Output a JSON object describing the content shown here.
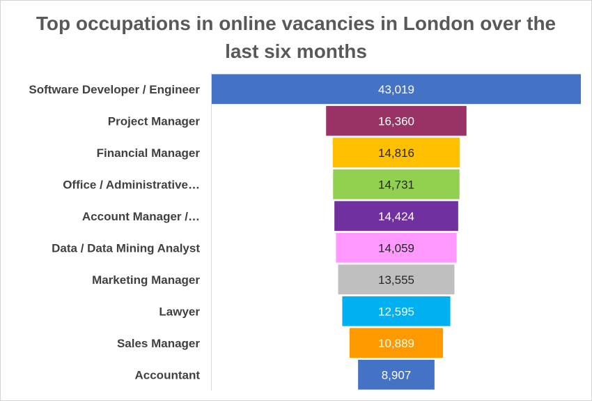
{
  "chart_data": {
    "type": "bar",
    "orientation": "horizontal-funnel",
    "title_lines": [
      "Top occupations in online vacancies in London over the",
      "last six months"
    ],
    "categories": [
      "Software Developer / Engineer",
      "Project Manager",
      "Financial Manager",
      "Office / Administrative…",
      "Account Manager /…",
      "Data / Data Mining Analyst",
      "Marketing Manager",
      "Lawyer",
      "Sales Manager",
      "Accountant"
    ],
    "values": [
      43019,
      16360,
      14816,
      14731,
      14424,
      14059,
      13555,
      12595,
      10889,
      8907
    ],
    "value_labels": [
      "43,019",
      "16,360",
      "14,816",
      "14,731",
      "14,424",
      "14,059",
      "13,555",
      "12,595",
      "10,889",
      "8,907"
    ],
    "colors": [
      "#4472c4",
      "#993366",
      "#ffc000",
      "#92d050",
      "#7030a0",
      "#ff99ff",
      "#bfbfbf",
      "#00b0f0",
      "#ff9900",
      "#4472c4"
    ],
    "label_colors": [
      "#ffffff",
      "#ffffff",
      "#262626",
      "#262626",
      "#ffffff",
      "#262626",
      "#262626",
      "#ffffff",
      "#ffffff",
      "#ffffff"
    ],
    "xlim": [
      0,
      43019
    ],
    "grid": false,
    "legend": "none"
  }
}
